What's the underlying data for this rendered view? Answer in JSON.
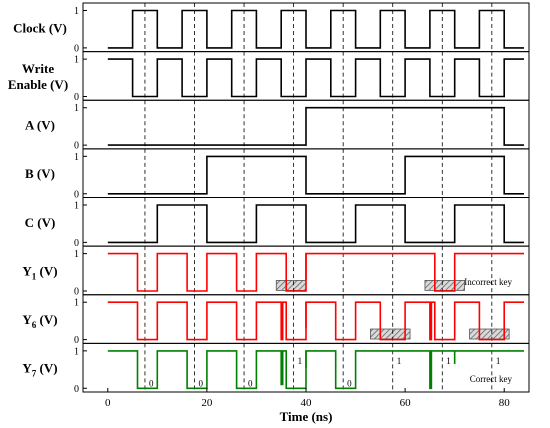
{
  "chart_data": {
    "type": "line",
    "xlabel": "Time (ns)",
    "xlim": [
      -5,
      85
    ],
    "xticks": [
      0,
      20,
      40,
      60,
      80
    ],
    "ylim": [
      -0.1,
      1.2
    ],
    "yticks": [
      0,
      1
    ],
    "dashed_lines_x": [
      7.5,
      17.5,
      27.5,
      37.5,
      47.5,
      57.5,
      67.5,
      77.5
    ],
    "panels": [
      {
        "id": "clock",
        "label": "Clock (V)",
        "color": "#000000",
        "points": [
          [
            0,
            0
          ],
          [
            5,
            0
          ],
          [
            5,
            1
          ],
          [
            10,
            1
          ],
          [
            10,
            0
          ],
          [
            15,
            0
          ],
          [
            15,
            1
          ],
          [
            20,
            1
          ],
          [
            20,
            0
          ],
          [
            25,
            0
          ],
          [
            25,
            1
          ],
          [
            30,
            1
          ],
          [
            30,
            0
          ],
          [
            35,
            0
          ],
          [
            35,
            1
          ],
          [
            40,
            1
          ],
          [
            40,
            0
          ],
          [
            45,
            0
          ],
          [
            45,
            1
          ],
          [
            50,
            1
          ],
          [
            50,
            0
          ],
          [
            55,
            0
          ],
          [
            55,
            1
          ],
          [
            60,
            1
          ],
          [
            60,
            0
          ],
          [
            65,
            0
          ],
          [
            65,
            1
          ],
          [
            70,
            1
          ],
          [
            70,
            0
          ],
          [
            75,
            0
          ],
          [
            75,
            1
          ],
          [
            80,
            1
          ],
          [
            80,
            0
          ],
          [
            84,
            0
          ]
        ]
      },
      {
        "id": "write-enable",
        "label": "Write Enable (V)",
        "label_lines": [
          "Write",
          "Enable (V)"
        ],
        "color": "#000000",
        "points": [
          [
            0,
            1
          ],
          [
            5,
            1
          ],
          [
            5,
            0
          ],
          [
            10,
            0
          ],
          [
            10,
            1
          ],
          [
            15,
            1
          ],
          [
            15,
            0
          ],
          [
            20,
            0
          ],
          [
            20,
            1
          ],
          [
            25,
            1
          ],
          [
            25,
            0
          ],
          [
            30,
            0
          ],
          [
            30,
            1
          ],
          [
            35,
            1
          ],
          [
            35,
            0
          ],
          [
            40,
            0
          ],
          [
            40,
            1
          ],
          [
            45,
            1
          ],
          [
            45,
            0
          ],
          [
            50,
            0
          ],
          [
            50,
            1
          ],
          [
            55,
            1
          ],
          [
            55,
            0
          ],
          [
            60,
            0
          ],
          [
            60,
            1
          ],
          [
            65,
            1
          ],
          [
            65,
            0
          ],
          [
            70,
            0
          ],
          [
            70,
            1
          ],
          [
            75,
            1
          ],
          [
            75,
            0
          ],
          [
            80,
            0
          ],
          [
            80,
            1
          ],
          [
            84,
            1
          ]
        ]
      },
      {
        "id": "a",
        "label": "A (V)",
        "color": "#000000",
        "points": [
          [
            0,
            0
          ],
          [
            40,
            0
          ],
          [
            40,
            1
          ],
          [
            80,
            1
          ],
          [
            80,
            0
          ],
          [
            84,
            0
          ]
        ]
      },
      {
        "id": "b",
        "label": "B (V)",
        "color": "#000000",
        "points": [
          [
            0,
            0
          ],
          [
            20,
            0
          ],
          [
            20,
            1
          ],
          [
            40,
            1
          ],
          [
            40,
            0
          ],
          [
            60,
            0
          ],
          [
            60,
            1
          ],
          [
            80,
            1
          ],
          [
            80,
            0
          ],
          [
            84,
            0
          ]
        ]
      },
      {
        "id": "c",
        "label": "C (V)",
        "color": "#000000",
        "points": [
          [
            0,
            0
          ],
          [
            10,
            0
          ],
          [
            10,
            1
          ],
          [
            20,
            1
          ],
          [
            20,
            0
          ],
          [
            30,
            0
          ],
          [
            30,
            1
          ],
          [
            40,
            1
          ],
          [
            40,
            0
          ],
          [
            50,
            0
          ],
          [
            50,
            1
          ],
          [
            60,
            1
          ],
          [
            60,
            0
          ],
          [
            70,
            0
          ],
          [
            70,
            1
          ],
          [
            80,
            1
          ],
          [
            80,
            0
          ],
          [
            84,
            0
          ]
        ]
      },
      {
        "id": "y1",
        "label": "Y1 (V)",
        "label_main": "Y",
        "label_sub": "1",
        "label_rest": " (V)",
        "color": "#ff0000",
        "points": [
          [
            0,
            1
          ],
          [
            6,
            1
          ],
          [
            6,
            0
          ],
          [
            10,
            0
          ],
          [
            10,
            1
          ],
          [
            16,
            1
          ],
          [
            16,
            0
          ],
          [
            20,
            0
          ],
          [
            20,
            1
          ],
          [
            26,
            1
          ],
          [
            26,
            0
          ],
          [
            30,
            0
          ],
          [
            30,
            1
          ],
          [
            36,
            1
          ],
          [
            36,
            0
          ],
          [
            40,
            0
          ],
          [
            40,
            1
          ],
          [
            66,
            1
          ],
          [
            66,
            0
          ],
          [
            70,
            0
          ],
          [
            70,
            1
          ],
          [
            84,
            1
          ]
        ],
        "glitches": [
          [
            40,
            0.3
          ]
        ],
        "hatched": [
          [
            34,
            40
          ],
          [
            64,
            72
          ]
        ],
        "annotation": "Incorrect key"
      },
      {
        "id": "y6",
        "label": "Y6 (V)",
        "label_main": "Y",
        "label_sub": "6",
        "label_rest": " (V)",
        "color": "#ff0000",
        "points": [
          [
            0,
            1
          ],
          [
            6,
            1
          ],
          [
            6,
            0
          ],
          [
            10,
            0
          ],
          [
            10,
            1
          ],
          [
            16,
            1
          ],
          [
            16,
            0
          ],
          [
            20,
            0
          ],
          [
            20,
            1
          ],
          [
            26,
            1
          ],
          [
            26,
            0
          ],
          [
            30,
            0
          ],
          [
            30,
            1
          ],
          [
            35,
            1
          ],
          [
            35,
            0
          ],
          [
            35.3,
            0
          ],
          [
            35.3,
            1
          ],
          [
            36,
            1
          ],
          [
            36,
            0
          ],
          [
            40,
            0
          ],
          [
            40,
            1
          ],
          [
            46,
            1
          ],
          [
            46,
            0
          ],
          [
            50,
            0
          ],
          [
            50,
            1
          ],
          [
            55,
            1
          ],
          [
            55,
            0
          ],
          [
            60,
            0
          ],
          [
            60,
            1
          ],
          [
            65,
            1
          ],
          [
            65,
            0
          ],
          [
            65.3,
            0
          ],
          [
            65.3,
            1
          ],
          [
            66,
            1
          ],
          [
            66,
            0
          ],
          [
            70,
            0
          ],
          [
            70,
            1
          ],
          [
            75,
            1
          ],
          [
            75,
            0
          ],
          [
            80,
            0
          ],
          [
            80,
            1
          ],
          [
            84,
            1
          ]
        ],
        "glitches": [
          [
            40,
            0.3
          ]
        ],
        "hatched": [
          [
            53,
            61
          ],
          [
            73,
            81
          ]
        ]
      },
      {
        "id": "y7",
        "label": "Y7 (V)",
        "label_main": "Y",
        "label_sub": "7",
        "label_rest": " (V)",
        "color": "#008000",
        "points": [
          [
            0,
            1
          ],
          [
            6,
            1
          ],
          [
            6,
            0
          ],
          [
            10,
            0
          ],
          [
            10,
            1
          ],
          [
            16,
            1
          ],
          [
            16,
            0
          ],
          [
            20,
            0
          ],
          [
            20,
            1
          ],
          [
            26,
            1
          ],
          [
            26,
            0
          ],
          [
            30,
            0
          ],
          [
            30,
            1
          ],
          [
            35,
            1
          ],
          [
            35,
            0.1
          ],
          [
            35.3,
            0.1
          ],
          [
            35.3,
            1
          ],
          [
            36,
            1
          ],
          [
            36,
            0
          ],
          [
            40,
            0
          ],
          [
            40,
            1
          ],
          [
            46,
            1
          ],
          [
            46,
            0
          ],
          [
            50,
            0
          ],
          [
            50,
            1
          ],
          [
            65,
            1
          ],
          [
            65,
            0
          ],
          [
            65.3,
            0
          ],
          [
            65.3,
            1
          ],
          [
            84,
            1
          ]
        ],
        "glitches": [
          [
            40,
            0.55
          ],
          [
            70,
            0.65
          ]
        ],
        "annotation": "Correct key",
        "bit_marks": [
          {
            "x": 7.5,
            "v": "0"
          },
          {
            "x": 17.5,
            "v": "0"
          },
          {
            "x": 27.5,
            "v": "0"
          },
          {
            "x": 37.5,
            "v": "1"
          },
          {
            "x": 47.5,
            "v": "0"
          },
          {
            "x": 57.5,
            "v": "1"
          },
          {
            "x": 67.5,
            "v": "1"
          },
          {
            "x": 77.5,
            "v": "1"
          }
        ]
      }
    ]
  }
}
